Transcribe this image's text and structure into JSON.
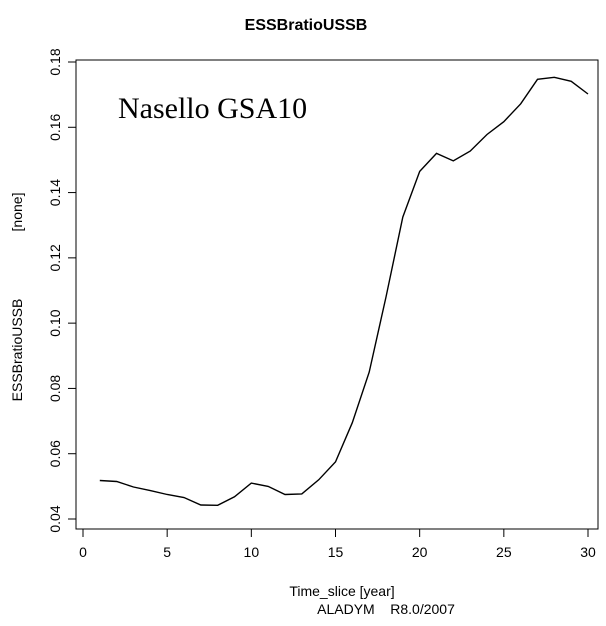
{
  "chart_data": {
    "type": "line",
    "title": "ESSBratioUSSB",
    "annotation": "Nasello GSA10",
    "xlabel": "Time_slice [year]",
    "ylabel": "ESSBratioUSSB",
    "ylabel_unit": "[none]",
    "credit": "ALADYM    R8.0/2007",
    "xlim": [
      0,
      31
    ],
    "ylim": [
      0.04,
      0.18
    ],
    "x_ticks": [
      0,
      5,
      10,
      15,
      20,
      25,
      30
    ],
    "y_ticks": [
      0.04,
      0.06,
      0.08,
      0.1,
      0.12,
      0.14,
      0.16,
      0.18
    ],
    "x_tick_labels": [
      "0",
      "5",
      "10",
      "15",
      "20",
      "25",
      "30"
    ],
    "y_tick_labels": [
      "0.04",
      "0.06",
      "0.08",
      "0.10",
      "0.12",
      "0.14",
      "0.16",
      "0.18"
    ],
    "grid": false,
    "series": [
      {
        "x": [
          1,
          2,
          3,
          4,
          5,
          6,
          7,
          8,
          9,
          10,
          11,
          12,
          13,
          14,
          15,
          16,
          17,
          18,
          19,
          20,
          21,
          22,
          23,
          24,
          25,
          26,
          27,
          28,
          29,
          30
        ],
        "values": [
          0.0518,
          0.0515,
          0.0498,
          0.0487,
          0.0475,
          0.0466,
          0.0443,
          0.0442,
          0.0468,
          0.051,
          0.05,
          0.0475,
          0.0477,
          0.052,
          0.0575,
          0.0695,
          0.085,
          0.108,
          0.1325,
          0.1465,
          0.152,
          0.1497,
          0.1527,
          0.1578,
          0.1617,
          0.1672,
          0.1747,
          0.1753,
          0.1741,
          0.1702
        ],
        "color": "#000000"
      }
    ]
  }
}
